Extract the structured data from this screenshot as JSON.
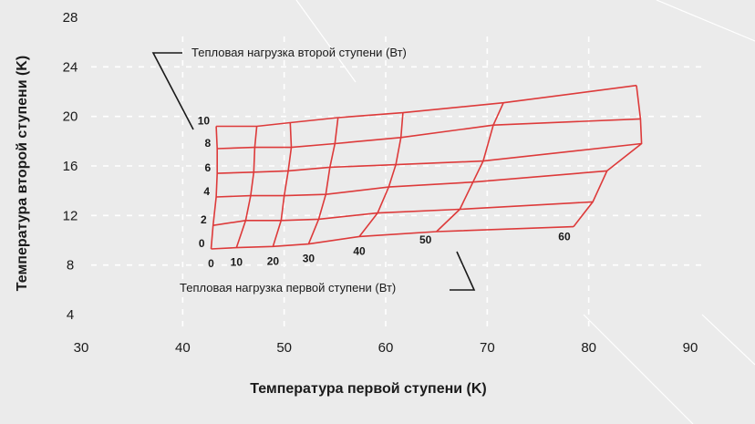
{
  "chart_data": {
    "type": "line",
    "xlabel": "Температура первой ступени (K)",
    "ylabel": "Температура второй ступени (K)",
    "xlim": [
      30,
      90
    ],
    "ylim": [
      4,
      28
    ],
    "xticks": [
      30,
      40,
      50,
      60,
      70,
      80,
      90
    ],
    "yticks": [
      4,
      8,
      12,
      16,
      20,
      24,
      28
    ],
    "grid": true,
    "annotations": {
      "second_stage_load": "Тепловая нагрузка второй ступени (Вт)",
      "first_stage_load": "Тепловая нагрузка первой ступени (Вт)"
    },
    "second_stage_loads_W": [
      0,
      2,
      4,
      6,
      8,
      10
    ],
    "first_stage_loads_W": [
      0,
      10,
      20,
      30,
      40,
      50,
      60
    ],
    "second_stage_label_text": [
      "0",
      "2",
      "4",
      "6",
      "8",
      "10"
    ],
    "first_stage_label_text": [
      "0",
      "10",
      "20",
      "30",
      "40",
      "50",
      "60"
    ],
    "grid_points": [
      [
        [
          42.8,
          9.3
        ],
        [
          45.3,
          9.4
        ],
        [
          48.9,
          9.5
        ],
        [
          52.4,
          9.7
        ],
        [
          57.4,
          10.3
        ],
        [
          65.0,
          10.7
        ],
        [
          78.5,
          11.1
        ]
      ],
      [
        [
          43.0,
          11.2
        ],
        [
          46.2,
          11.6
        ],
        [
          49.7,
          11.6
        ],
        [
          53.4,
          11.7
        ],
        [
          59.2,
          12.2
        ],
        [
          67.3,
          12.5
        ],
        [
          80.4,
          13.1
        ]
      ],
      [
        [
          43.3,
          13.5
        ],
        [
          46.7,
          13.6
        ],
        [
          50.0,
          13.6
        ],
        [
          54.1,
          13.7
        ],
        [
          60.3,
          14.3
        ],
        [
          68.6,
          14.7
        ],
        [
          81.8,
          15.6
        ]
      ],
      [
        [
          43.4,
          15.4
        ],
        [
          47.0,
          15.5
        ],
        [
          50.4,
          15.6
        ],
        [
          54.5,
          15.9
        ],
        [
          61.0,
          16.1
        ],
        [
          69.6,
          16.4
        ],
        [
          85.2,
          17.8
        ]
      ],
      [
        [
          43.4,
          17.4
        ],
        [
          47.1,
          17.5
        ],
        [
          50.7,
          17.5
        ],
        [
          55.0,
          17.8
        ],
        [
          61.5,
          18.3
        ],
        [
          70.6,
          19.3
        ],
        [
          85.1,
          19.8
        ]
      ],
      [
        [
          43.3,
          19.2
        ],
        [
          47.3,
          19.2
        ],
        [
          50.6,
          19.5
        ],
        [
          55.3,
          19.9
        ],
        [
          61.7,
          20.3
        ],
        [
          71.6,
          21.1
        ],
        [
          84.7,
          22.5
        ]
      ]
    ]
  }
}
